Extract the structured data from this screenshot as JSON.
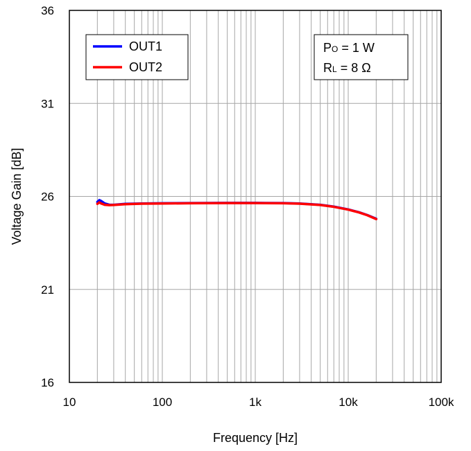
{
  "chart_data": {
    "type": "line",
    "xlabel": "Frequency [Hz]",
    "ylabel": "Voltage Gain [dB]",
    "x_scale": "log",
    "xlim": [
      10,
      100000
    ],
    "ylim": [
      16,
      36
    ],
    "x_ticks": [
      10,
      100,
      1000,
      10000,
      100000
    ],
    "x_tick_labels": [
      "10",
      "100",
      "1k",
      "10k",
      "100k"
    ],
    "y_ticks": [
      16,
      21,
      26,
      31,
      36
    ],
    "y_tick_labels": [
      "16",
      "21",
      "26",
      "31",
      "36"
    ],
    "grid": true,
    "legend_position": "top-left",
    "series": [
      {
        "name": "OUT1",
        "color": "#0000ff",
        "points": [
          [
            20,
            25.7
          ],
          [
            21,
            25.8
          ],
          [
            22,
            25.75
          ],
          [
            24,
            25.62
          ],
          [
            27,
            25.55
          ],
          [
            30,
            25.55
          ],
          [
            40,
            25.6
          ],
          [
            60,
            25.62
          ],
          [
            100,
            25.63
          ],
          [
            200,
            25.64
          ],
          [
            500,
            25.65
          ],
          [
            1000,
            25.65
          ],
          [
            2000,
            25.64
          ],
          [
            3000,
            25.62
          ],
          [
            5000,
            25.55
          ],
          [
            7000,
            25.45
          ],
          [
            10000,
            25.3
          ],
          [
            13000,
            25.15
          ],
          [
            16000,
            25.0
          ],
          [
            20000,
            24.8
          ]
        ]
      },
      {
        "name": "OUT2",
        "color": "#ff0000",
        "points": [
          [
            20,
            25.6
          ],
          [
            21,
            25.68
          ],
          [
            22,
            25.62
          ],
          [
            24,
            25.55
          ],
          [
            27,
            25.53
          ],
          [
            30,
            25.54
          ],
          [
            40,
            25.58
          ],
          [
            60,
            25.61
          ],
          [
            100,
            25.62
          ],
          [
            200,
            25.63
          ],
          [
            500,
            25.64
          ],
          [
            1000,
            25.64
          ],
          [
            2000,
            25.63
          ],
          [
            3000,
            25.61
          ],
          [
            5000,
            25.54
          ],
          [
            7000,
            25.44
          ],
          [
            10000,
            25.29
          ],
          [
            13000,
            25.14
          ],
          [
            16000,
            24.99
          ],
          [
            20000,
            24.78
          ]
        ]
      }
    ],
    "annotation": {
      "line1_main": "P",
      "line1_sub": "O",
      "line1_rest": " = 1 W",
      "line2_main": "R",
      "line2_sub": "L",
      "line2_rest": " = 8 Ω"
    }
  }
}
